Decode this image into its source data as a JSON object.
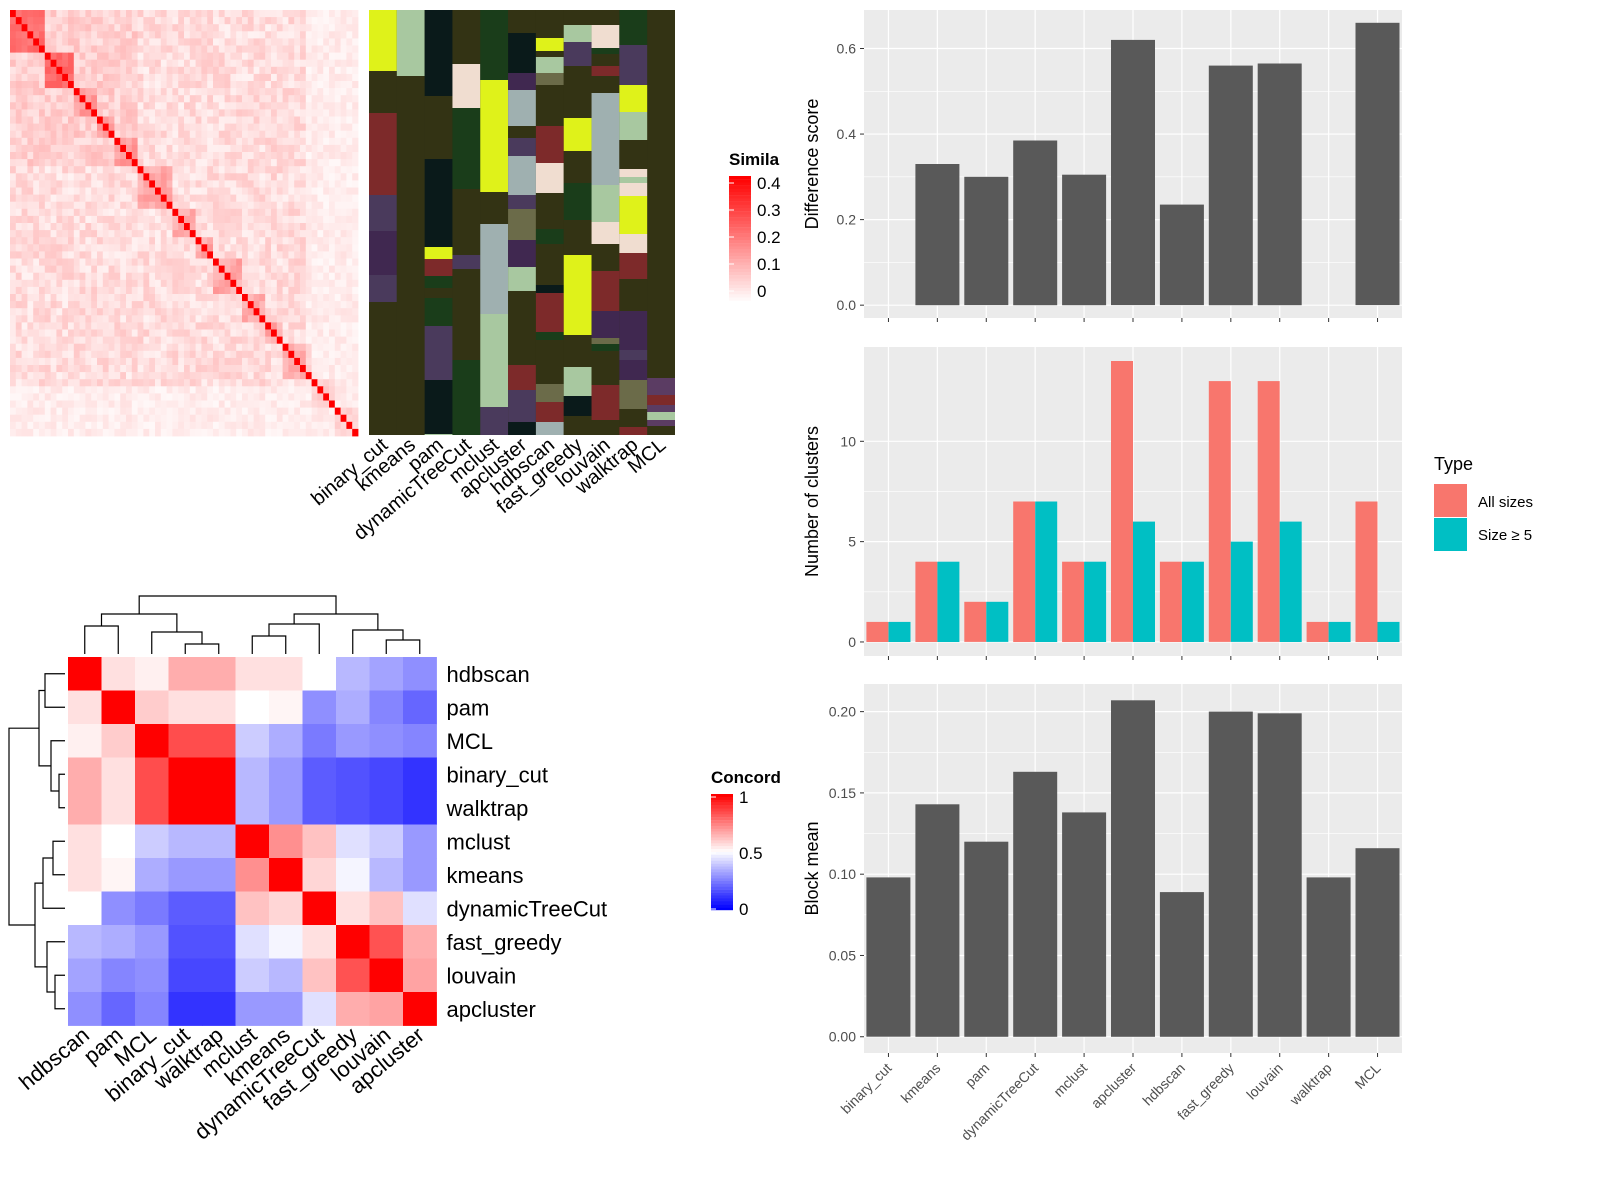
{
  "colors": {
    "panel_bg": "#EBEBEB",
    "grid": "#FFFFFF",
    "bar": "#595959",
    "all_sizes": "#F8766D",
    "size_ge_5": "#00BFC4",
    "heat_high": "#FF0000",
    "heat_low": "#FFFFFF",
    "conc_low": "#0000FF",
    "conc_mid": "#FFFFFF",
    "conc_high": "#FF0000",
    "annot_bg": "#333314"
  },
  "similarity_heatmap": {
    "legend_title": "Simila",
    "legend_ticks": [
      "0.4",
      "0.3",
      "0.2",
      "0.1",
      "0"
    ],
    "n_cells": 60,
    "block_sizes": [
      6,
      5,
      4,
      3,
      4,
      6,
      4,
      3,
      5,
      4,
      3,
      5,
      4,
      4
    ]
  },
  "cluster_annotation": {
    "columns": [
      "binary_cut",
      "kmeans",
      "pam",
      "dynamicTreeCut",
      "mclust",
      "apcluster",
      "hdbscan",
      "fast_greedy",
      "louvain",
      "walktrap",
      "MCL"
    ]
  },
  "concordance": {
    "legend_title": "Concord",
    "legend_ticks": [
      "1",
      "0.5",
      "0"
    ],
    "order": [
      "hdbscan",
      "pam",
      "MCL",
      "binary_cut",
      "walktrap",
      "mclust",
      "kmeans",
      "dynamicTreeCut",
      "fast_greedy",
      "louvain",
      "apcluster"
    ],
    "matrix": [
      [
        1.0,
        0.56,
        0.53,
        0.66,
        0.66,
        0.56,
        0.56,
        0.5,
        0.36,
        0.32,
        0.28
      ],
      [
        0.56,
        1.0,
        0.6,
        0.56,
        0.56,
        0.5,
        0.52,
        0.28,
        0.34,
        0.26,
        0.2
      ],
      [
        0.53,
        0.6,
        1.0,
        0.85,
        0.85,
        0.4,
        0.34,
        0.24,
        0.3,
        0.28,
        0.26
      ],
      [
        0.66,
        0.56,
        0.85,
        1.0,
        1.0,
        0.36,
        0.3,
        0.18,
        0.16,
        0.14,
        0.1
      ],
      [
        0.66,
        0.56,
        0.85,
        1.0,
        1.0,
        0.36,
        0.3,
        0.18,
        0.16,
        0.14,
        0.1
      ],
      [
        0.56,
        0.5,
        0.4,
        0.36,
        0.36,
        1.0,
        0.72,
        0.62,
        0.44,
        0.4,
        0.3
      ],
      [
        0.56,
        0.52,
        0.34,
        0.3,
        0.3,
        0.72,
        1.0,
        0.58,
        0.48,
        0.36,
        0.3
      ],
      [
        0.5,
        0.28,
        0.24,
        0.18,
        0.18,
        0.62,
        0.58,
        1.0,
        0.56,
        0.62,
        0.44
      ],
      [
        0.36,
        0.34,
        0.3,
        0.16,
        0.16,
        0.44,
        0.48,
        0.56,
        1.0,
        0.84,
        0.66
      ],
      [
        0.32,
        0.26,
        0.28,
        0.14,
        0.14,
        0.4,
        0.36,
        0.62,
        0.84,
        1.0,
        0.68
      ],
      [
        0.28,
        0.2,
        0.26,
        0.1,
        0.1,
        0.3,
        0.3,
        0.44,
        0.66,
        0.68,
        1.0
      ]
    ]
  },
  "chart_data": [
    {
      "type": "bar",
      "ylabel": "Difference score",
      "categories": [
        "binary_cut",
        "kmeans",
        "pam",
        "dynamicTreeCut",
        "mclust",
        "apcluster",
        "hdbscan",
        "fast_greedy",
        "louvain",
        "walktrap",
        "MCL"
      ],
      "values": [
        0,
        0.33,
        0.3,
        0.385,
        0.305,
        0.62,
        0.235,
        0.56,
        0.565,
        0,
        0.66
      ],
      "ylim": [
        -0.03,
        0.69
      ],
      "yticks": [
        "0.0",
        "0.2",
        "0.4",
        "0.6"
      ]
    },
    {
      "type": "bar",
      "ylabel": "Number of clusters",
      "categories": [
        "binary_cut",
        "kmeans",
        "pam",
        "dynamicTreeCut",
        "mclust",
        "apcluster",
        "hdbscan",
        "fast_greedy",
        "louvain",
        "walktrap",
        "MCL"
      ],
      "legend_title": "Type",
      "series": [
        {
          "name": "All sizes",
          "values": [
            1,
            4,
            2,
            7,
            4,
            14,
            4,
            13,
            13,
            1,
            7
          ]
        },
        {
          "name": "Size ≥ 5",
          "values": [
            1,
            4,
            2,
            7,
            4,
            6,
            4,
            5,
            6,
            1,
            1
          ]
        }
      ],
      "ylim": [
        -0.7,
        14.7
      ],
      "yticks": [
        "0",
        "5",
        "10"
      ]
    },
    {
      "type": "bar",
      "ylabel": "Block mean",
      "categories": [
        "binary_cut",
        "kmeans",
        "pam",
        "dynamicTreeCut",
        "mclust",
        "apcluster",
        "hdbscan",
        "fast_greedy",
        "louvain",
        "walktrap",
        "MCL"
      ],
      "values": [
        0.098,
        0.143,
        0.12,
        0.163,
        0.138,
        0.207,
        0.089,
        0.2,
        0.199,
        0.098,
        0.116
      ],
      "ylim": [
        -0.01,
        0.217
      ],
      "yticks": [
        "0.00",
        "0.05",
        "0.10",
        "0.15",
        "0.20"
      ]
    }
  ]
}
